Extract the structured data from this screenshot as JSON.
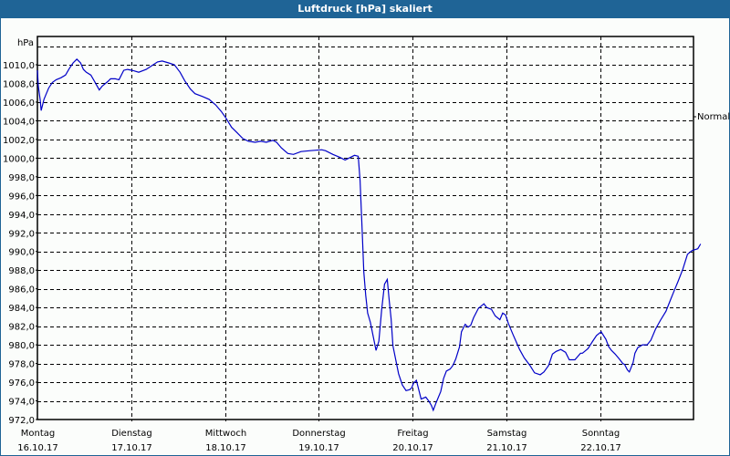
{
  "window": {
    "title": "Luftdruck [hPa] skaliert",
    "background_color": "#1f6496",
    "plot_background": "#fbfdfb",
    "line_color": "#0000c8"
  },
  "y_axis": {
    "unit_label": "hPa",
    "ticks": [
      "1010,0",
      "1008,0",
      "1006,0",
      "1004,0",
      "1002,0",
      "1000,0",
      "998,0",
      "996,0",
      "994,0",
      "992,0",
      "990,0",
      "988,0",
      "986,0",
      "984,0",
      "982,0",
      "980,0",
      "978,0",
      "976,0",
      "974,0",
      "972,0"
    ],
    "right_marker_label": "Normal"
  },
  "x_axis": {
    "ticks": [
      {
        "day": "Montag",
        "date": "16.10.17"
      },
      {
        "day": "Dienstag",
        "date": "17.10.17"
      },
      {
        "day": "Mittwoch",
        "date": "18.10.17"
      },
      {
        "day": "Donnerstag",
        "date": "19.10.17"
      },
      {
        "day": "Freitag",
        "date": "20.10.17"
      },
      {
        "day": "Samstag",
        "date": "21.10.17"
      },
      {
        "day": "Sonntag",
        "date": "22.10.17"
      }
    ]
  },
  "chart_data": {
    "type": "line",
    "title": "Luftdruck [hPa] skaliert",
    "xlabel": "",
    "ylabel": "hPa",
    "ylim": [
      972,
      1012
    ],
    "xlim_days": [
      0,
      7
    ],
    "grid": true,
    "legend": null,
    "annotations": [
      "Normal (right axis marker at ~1005,3 hPa)"
    ],
    "categories": [
      "Montag 16.10.17",
      "Dienstag 17.10.17",
      "Mittwoch 18.10.17",
      "Donnerstag 19.10.17",
      "Freitag 20.10.17",
      "Samstag 21.10.17",
      "Sonntag 22.10.17"
    ],
    "series": [
      {
        "name": "Luftdruck",
        "unit": "hPa",
        "x_days": [
          0.0,
          0.01,
          0.03,
          0.04,
          0.07,
          0.09,
          0.12,
          0.16,
          0.2,
          0.25,
          0.3,
          0.34,
          0.38,
          0.42,
          0.46,
          0.49,
          0.52,
          0.57,
          0.61,
          0.66,
          0.69,
          0.75,
          0.78,
          0.83,
          0.87,
          0.92,
          0.96,
          1.01,
          1.08,
          1.16,
          1.22,
          1.28,
          1.33,
          1.4,
          1.46,
          1.52,
          1.57,
          1.63,
          1.68,
          1.76,
          1.83,
          1.9,
          1.96,
          2.01,
          2.07,
          2.13,
          2.19,
          2.25,
          2.32,
          2.38,
          2.44,
          2.51,
          2.55,
          2.6,
          2.67,
          2.73,
          2.81,
          2.91,
          3.03,
          3.07,
          3.15,
          3.22,
          3.28,
          3.32,
          3.38,
          3.42,
          3.44,
          3.46,
          3.48,
          3.5,
          3.52,
          3.55,
          3.58,
          3.61,
          3.64,
          3.67,
          3.7,
          3.73,
          3.75,
          3.77,
          3.79,
          3.82,
          3.85,
          3.89,
          3.93,
          3.97,
          3.99,
          4.01,
          4.04,
          4.09,
          4.14,
          4.17,
          4.2,
          4.22,
          4.25,
          4.3,
          4.33,
          4.36,
          4.4,
          4.43,
          4.46,
          4.5,
          4.52,
          4.56,
          4.59,
          4.62,
          4.65,
          4.7,
          4.76,
          4.79,
          4.84,
          4.88,
          4.93,
          4.96,
          4.99,
          5.02,
          5.07,
          5.11,
          5.14,
          5.19,
          5.25,
          5.3,
          5.36,
          5.4,
          5.45,
          5.49,
          5.53,
          5.58,
          5.63,
          5.67,
          5.73,
          5.79,
          5.81,
          5.87,
          5.92,
          5.96,
          6.01,
          6.06,
          6.09,
          6.12,
          6.16,
          6.21,
          6.24,
          6.26,
          6.29,
          6.31,
          6.35,
          6.37,
          6.4,
          6.45,
          6.5,
          6.54,
          6.59,
          6.64,
          6.7,
          6.74,
          6.78,
          6.83,
          6.88,
          6.93,
          6.98,
          7.04,
          7.07,
          7.1,
          7.12
        ],
        "values": [
          1009.4,
          1007.7,
          1006.2,
          1005.1,
          1006.3,
          1006.8,
          1007.5,
          1008.1,
          1008.4,
          1008.6,
          1008.9,
          1009.6,
          1010.2,
          1010.6,
          1010.2,
          1009.5,
          1009.2,
          1008.9,
          1008.2,
          1007.3,
          1007.7,
          1008.2,
          1008.5,
          1008.5,
          1008.4,
          1009.4,
          1009.5,
          1009.4,
          1009.2,
          1009.5,
          1009.9,
          1010.3,
          1010.4,
          1010.2,
          1010.0,
          1009.2,
          1008.3,
          1007.4,
          1006.9,
          1006.6,
          1006.3,
          1005.7,
          1005.0,
          1004.3,
          1003.3,
          1002.7,
          1002.1,
          1001.8,
          1001.7,
          1001.8,
          1001.7,
          1001.9,
          1001.7,
          1001.1,
          1000.5,
          1000.4,
          1000.7,
          1000.8,
          1000.9,
          1000.8,
          1000.4,
          1000.1,
          999.8,
          1000.0,
          1000.3,
          1000.2,
          997.6,
          992.7,
          987.8,
          985.3,
          983.4,
          982.4,
          980.9,
          979.4,
          980.4,
          983.8,
          986.5,
          987.0,
          984.8,
          982.8,
          979.9,
          978.4,
          976.9,
          975.7,
          975.1,
          975.2,
          975.4,
          975.9,
          976.2,
          974.2,
          974.4,
          974.0,
          973.5,
          973.0,
          973.8,
          975.0,
          976.4,
          977.2,
          977.4,
          977.8,
          978.5,
          979.8,
          981.4,
          982.2,
          981.9,
          982.1,
          982.9,
          983.9,
          984.4,
          984.0,
          983.8,
          983.1,
          982.7,
          983.4,
          983.2,
          982.3,
          981.1,
          980.2,
          979.5,
          978.6,
          977.8,
          977.0,
          976.8,
          977.1,
          977.8,
          979.0,
          979.3,
          979.5,
          979.2,
          978.4,
          978.4,
          979.1,
          979.1,
          979.6,
          980.4,
          981.0,
          981.4,
          980.6,
          979.8,
          979.4,
          979.0,
          978.4,
          978.0,
          977.9,
          977.3,
          977.1,
          978.1,
          979.1,
          979.7,
          980.0,
          980.0,
          980.5,
          981.7,
          982.6,
          983.6,
          984.6,
          985.6,
          986.8,
          988.1,
          989.7,
          990.1,
          990.3,
          990.8
        ]
      }
    ]
  }
}
